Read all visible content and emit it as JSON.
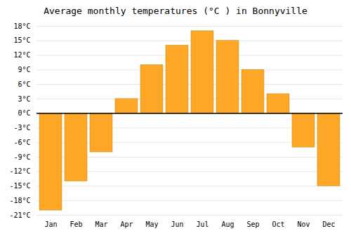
{
  "chart_data": {
    "type": "bar",
    "title": "Average monthly temperatures (°C ) in Bonnyville",
    "categories": [
      "Jan",
      "Feb",
      "Mar",
      "Apr",
      "May",
      "Jun",
      "Jul",
      "Aug",
      "Sep",
      "Oct",
      "Nov",
      "Dec"
    ],
    "values": [
      -20,
      -14,
      -8,
      3,
      10,
      14,
      17,
      15,
      9,
      4,
      -7,
      -15
    ],
    "color": "#FFA726",
    "ylim": [
      -21,
      18
    ],
    "yticks": [
      {
        "value": -21,
        "label": "-21°C"
      },
      {
        "value": -18,
        "label": "-18°C"
      },
      {
        "value": -15,
        "label": "-15°C"
      },
      {
        "value": -12,
        "label": "-12°C"
      },
      {
        "value": -9,
        "label": "-9°C"
      },
      {
        "value": -6,
        "label": "-6°C"
      },
      {
        "value": -3,
        "label": "-3°C"
      },
      {
        "value": 0,
        "label": "0°C"
      },
      {
        "value": 3,
        "label": "3°C"
      },
      {
        "value": 6,
        "label": "6°C"
      },
      {
        "value": 9,
        "label": "9°C"
      },
      {
        "value": 12,
        "label": "12°C"
      },
      {
        "value": 15,
        "label": "15°C"
      },
      {
        "value": 18,
        "label": "18°C"
      }
    ],
    "grid": true
  }
}
